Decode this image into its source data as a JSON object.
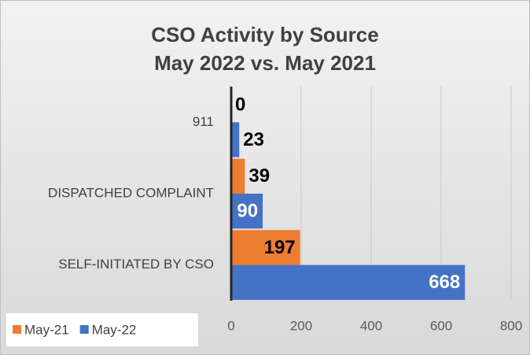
{
  "chart_data": {
    "type": "bar",
    "orientation": "horizontal",
    "title": "CSO Activity by Source",
    "subtitle": "May 2022 vs. May 2021",
    "categories": [
      "911",
      "DISPATCHED COMPLAINT",
      "SELF-INITIATED BY CSO"
    ],
    "series": [
      {
        "name": "May-21",
        "color": "#ed7d31",
        "values": [
          0,
          39,
          197
        ]
      },
      {
        "name": "May-22",
        "color": "#4472c4",
        "values": [
          23,
          90,
          668
        ]
      }
    ],
    "xlim": [
      0,
      800
    ],
    "xticks": [
      0,
      200,
      400,
      600,
      800
    ],
    "grid": true,
    "legend": "bottom-left"
  }
}
